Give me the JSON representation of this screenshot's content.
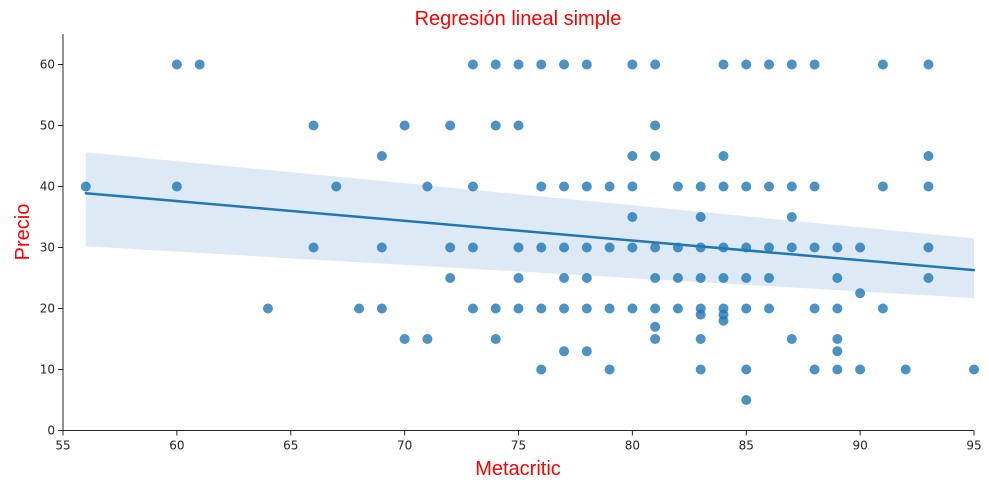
{
  "chart_data": {
    "type": "scatter",
    "title": "Regresión lineal simple",
    "xlabel": "Metacritic",
    "ylabel": "Precio",
    "xlim": [
      55,
      95
    ],
    "ylim": [
      0,
      65
    ],
    "x_ticks": [
      "55",
      "60",
      "65",
      "70",
      "75",
      "80",
      "85",
      "90",
      "95"
    ],
    "y_ticks": [
      "0",
      "10",
      "20",
      "30",
      "40",
      "50",
      "60"
    ],
    "grid": false,
    "legend": "none",
    "colors": {
      "points": "#1f77b4",
      "line": "#1f77b4",
      "band": "#c6dbef",
      "title": "#ff0000",
      "axis_labels": "#ff0000"
    },
    "regression": {
      "x": [
        56,
        95
      ],
      "y": [
        38.9,
        26.3
      ],
      "ci_lower": [
        30.2,
        21.7
      ],
      "ci_upper": [
        45.6,
        31.5
      ]
    },
    "points": [
      [
        56,
        40
      ],
      [
        60,
        40
      ],
      [
        60,
        60
      ],
      [
        61,
        60
      ],
      [
        64,
        20
      ],
      [
        66,
        50
      ],
      [
        66,
        30
      ],
      [
        67,
        40
      ],
      [
        68,
        20
      ],
      [
        69,
        45
      ],
      [
        69,
        30
      ],
      [
        69,
        20
      ],
      [
        70,
        50
      ],
      [
        70,
        15
      ],
      [
        71,
        40
      ],
      [
        71,
        15
      ],
      [
        72,
        50
      ],
      [
        72,
        30
      ],
      [
        72,
        25
      ],
      [
        73,
        60
      ],
      [
        73,
        40
      ],
      [
        73,
        30
      ],
      [
        73,
        20
      ],
      [
        74,
        60
      ],
      [
        74,
        50
      ],
      [
        74,
        20
      ],
      [
        74,
        15
      ],
      [
        75,
        60
      ],
      [
        75,
        50
      ],
      [
        75,
        30
      ],
      [
        75,
        25
      ],
      [
        75,
        20
      ],
      [
        76,
        60
      ],
      [
        76,
        40
      ],
      [
        76,
        30
      ],
      [
        76,
        20
      ],
      [
        76,
        10
      ],
      [
        77,
        60
      ],
      [
        77,
        40
      ],
      [
        77,
        30
      ],
      [
        77,
        25
      ],
      [
        77,
        20
      ],
      [
        77,
        13
      ],
      [
        78,
        60
      ],
      [
        78,
        40
      ],
      [
        78,
        30
      ],
      [
        78,
        25
      ],
      [
        78,
        20
      ],
      [
        78,
        13
      ],
      [
        79,
        40
      ],
      [
        79,
        30
      ],
      [
        79,
        20
      ],
      [
        79,
        10
      ],
      [
        80,
        60
      ],
      [
        80,
        45
      ],
      [
        80,
        40
      ],
      [
        80,
        35
      ],
      [
        80,
        30
      ],
      [
        80,
        20
      ],
      [
        81,
        60
      ],
      [
        81,
        50
      ],
      [
        81,
        45
      ],
      [
        81,
        30
      ],
      [
        81,
        25
      ],
      [
        81,
        20
      ],
      [
        81,
        17
      ],
      [
        81,
        15
      ],
      [
        82,
        40
      ],
      [
        82,
        30
      ],
      [
        82,
        25
      ],
      [
        82,
        20
      ],
      [
        83,
        40
      ],
      [
        83,
        35
      ],
      [
        83,
        30
      ],
      [
        83,
        25
      ],
      [
        83,
        20
      ],
      [
        83,
        19
      ],
      [
        83,
        15
      ],
      [
        83,
        10
      ],
      [
        84,
        60
      ],
      [
        84,
        45
      ],
      [
        84,
        40
      ],
      [
        84,
        30
      ],
      [
        84,
        25
      ],
      [
        84,
        20
      ],
      [
        84,
        19
      ],
      [
        84,
        18
      ],
      [
        85,
        60
      ],
      [
        85,
        40
      ],
      [
        85,
        30
      ],
      [
        85,
        25
      ],
      [
        85,
        20
      ],
      [
        85,
        10
      ],
      [
        85,
        5
      ],
      [
        86,
        60
      ],
      [
        86,
        40
      ],
      [
        86,
        30
      ],
      [
        86,
        25
      ],
      [
        86,
        20
      ],
      [
        87,
        60
      ],
      [
        87,
        40
      ],
      [
        87,
        35
      ],
      [
        87,
        30
      ],
      [
        87,
        15
      ],
      [
        88,
        60
      ],
      [
        88,
        40
      ],
      [
        88,
        30
      ],
      [
        88,
        20
      ],
      [
        88,
        10
      ],
      [
        89,
        30
      ],
      [
        89,
        25
      ],
      [
        89,
        20
      ],
      [
        89,
        15
      ],
      [
        89,
        13
      ],
      [
        89,
        10
      ],
      [
        90,
        30
      ],
      [
        90,
        22.5
      ],
      [
        90,
        10
      ],
      [
        91,
        60
      ],
      [
        91,
        40
      ],
      [
        91,
        20
      ],
      [
        92,
        10
      ],
      [
        93,
        60
      ],
      [
        93,
        45
      ],
      [
        93,
        40
      ],
      [
        93,
        30
      ],
      [
        93,
        25
      ],
      [
        95,
        10
      ]
    ]
  }
}
